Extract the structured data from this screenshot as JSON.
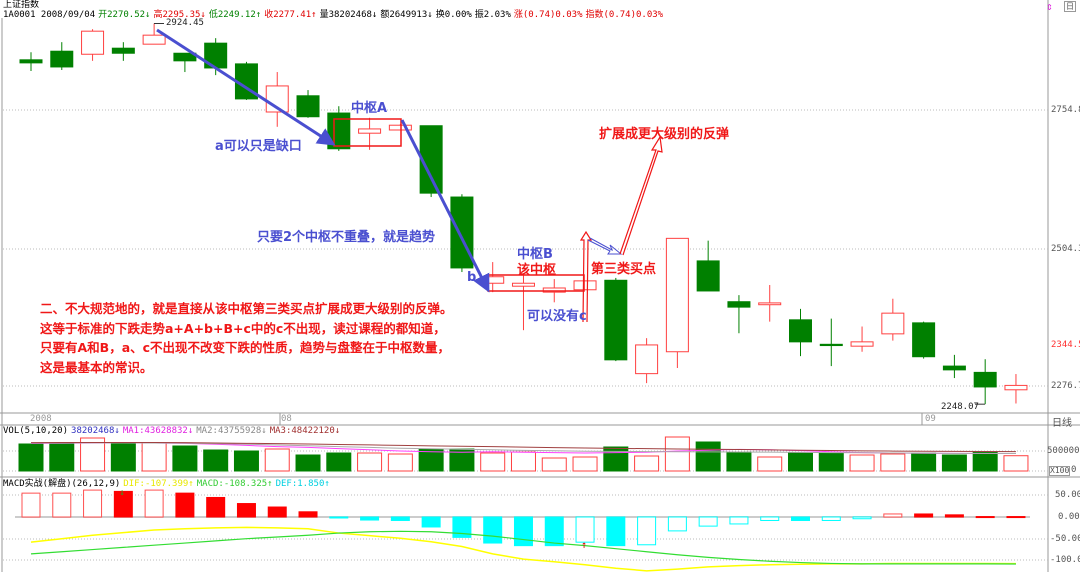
{
  "header": {
    "title": "上证指数",
    "fields": [
      {
        "text": "1A0001 2008/09/04",
        "color": "#000000"
      },
      {
        "text": "开2270.52↓",
        "color": "#008000"
      },
      {
        "text": "高2295.35↓",
        "color": "#e00000"
      },
      {
        "text": "低2249.12↑",
        "color": "#008000"
      },
      {
        "text": "收2277.41↑",
        "color": "#e00000"
      },
      {
        "text": "量38202468↓",
        "color": "#000000"
      },
      {
        "text": "额2649913↓",
        "color": "#000000"
      },
      {
        "text": "换0.00%",
        "color": "#000000"
      },
      {
        "text": "振2.03%",
        "color": "#000000"
      },
      {
        "text": "涨(0.74)0.03%",
        "color": "#e00000"
      },
      {
        "text": "指数(0.74)0.03%",
        "color": "#e00000"
      }
    ],
    "period_label": "日"
  },
  "price_axis": {
    "labels": [
      "2754.8",
      "2504.3",
      "2344.5",
      "2276.7"
    ],
    "highlight_label": "2344.5",
    "high_marker": "2924.45",
    "low_marker": "2248.07",
    "scale": "log"
  },
  "date_axis": {
    "labels": [
      "2008",
      "08",
      "09"
    ],
    "period": "日线"
  },
  "volume": {
    "title": "VOL(5,10,20)",
    "current": "38202468↓",
    "ma1": "MA1:43628832↓",
    "ma2": "MA2:43755928↓",
    "ma3": "MA3:48422120↓",
    "axis_labels": [
      "500000",
      "X100",
      "0"
    ]
  },
  "macd": {
    "title": "MACD实战(解盘)(26,12,9)",
    "dif": "DIF:-107.399↑",
    "dea": "MACD:-108.325↑",
    "def": "DEF:1.850↑",
    "axis_labels": [
      "50.00",
      "0.00",
      "-50.00",
      "-100.0"
    ]
  },
  "annotations": {
    "zhongshu_a": "中枢A",
    "a_gap": "a可以只是缺口",
    "trend_rule": "只要2个中枢不重叠，就是趋势",
    "b": "b",
    "zhongshu_b": "中枢B",
    "this_zhongshu": "该中枢",
    "third_buy": "第三类买点",
    "no_c": "可以没有c",
    "expand": "扩展成更大级别的反弹",
    "paragraph": [
      "二、不大规范地的，就是直接从该中枢第三类买点扩展成更大级别的反弹。",
      "这等于标准的下跌走势a+A+b+B+c中的c不出现，读过课程的都知道，",
      "只要有A和B，a、c不出现不改变下跌的性质，趋势与盘整在于中枢数量，",
      "这是最基本的常识。"
    ]
  },
  "colors": {
    "up": "#ff4040",
    "down": "#008000",
    "annotation_blue": "#4a4fd0",
    "annotation_red": "#f01818",
    "dif": "#ffff00",
    "dea": "#33dd33",
    "macd_neg": "#00ffff"
  },
  "chart_data": {
    "type": "candlestick",
    "candles": [
      [
        2852,
        2867,
        2830,
        2846
      ],
      [
        2869,
        2887,
        2832,
        2838
      ],
      [
        2863,
        2913,
        2850,
        2909
      ],
      [
        2875,
        2887,
        2850,
        2865
      ],
      [
        2883,
        2924.45,
        2883,
        2901
      ],
      [
        2865,
        2865,
        2828,
        2850
      ],
      [
        2885,
        2895,
        2822,
        2836
      ],
      [
        2844,
        2848,
        2774,
        2776
      ],
      [
        2751,
        2828,
        2723,
        2801
      ],
      [
        2782,
        2793,
        2740,
        2742
      ],
      [
        2749,
        2762,
        2678,
        2682
      ],
      [
        2711,
        2740,
        2680,
        2719
      ],
      [
        2717,
        2728,
        2717,
        2726
      ],
      [
        2725,
        2725,
        2594,
        2601
      ],
      [
        2594,
        2599,
        2463,
        2470
      ],
      [
        2444,
        2480,
        2429,
        2455
      ],
      [
        2439,
        2457,
        2366,
        2444
      ],
      [
        2429,
        2451,
        2412,
        2436
      ],
      [
        2433,
        2448,
        2433,
        2448
      ],
      [
        2449,
        2453,
        2316,
        2318
      ],
      [
        2296,
        2353,
        2281,
        2342
      ],
      [
        2331,
        2521,
        2305,
        2521
      ],
      [
        2482,
        2517,
        2431,
        2431
      ],
      [
        2413,
        2424,
        2361,
        2404
      ],
      [
        2408,
        2441,
        2380,
        2411
      ],
      [
        2383,
        2401,
        2324,
        2347
      ],
      [
        2343,
        2385,
        2308,
        2341
      ],
      [
        2340,
        2372,
        2331,
        2347
      ],
      [
        2360,
        2418,
        2349,
        2394
      ],
      [
        2378,
        2380,
        2320,
        2323
      ],
      [
        2308,
        2326,
        2289,
        2302
      ],
      [
        2298,
        2319,
        2248.07,
        2275
      ],
      [
        2270.52,
        2295.35,
        2249.12,
        2277.41
      ]
    ],
    "volume_x100": [
      675000,
      700000,
      825000,
      700000,
      700000,
      625000,
      525000,
      500000,
      550000,
      400000,
      450000,
      450000,
      425000,
      550000,
      550000,
      450000,
      475000,
      325000,
      350000,
      600000,
      375000,
      850000,
      725000,
      475000,
      350000,
      450000,
      450000,
      400000,
      425000,
      450000,
      400000,
      475000,
      382025
    ],
    "volume_ma": {
      "ma1": [
        690000,
        695000,
        700000,
        705000,
        700000,
        690000,
        670000,
        640000,
        610000,
        590000,
        560000,
        530000,
        500000,
        480000,
        470000,
        480000,
        470000,
        460000,
        450000,
        460000,
        470000,
        500000,
        520000,
        540000,
        530000,
        510000,
        480000,
        460000,
        450000,
        445000,
        440000,
        438000,
        436288
      ],
      "ma2": [
        700000,
        700000,
        702000,
        703000,
        700000,
        695000,
        685000,
        670000,
        650000,
        630000,
        610000,
        590000,
        570000,
        555000,
        545000,
        530000,
        515000,
        505000,
        495000,
        490000,
        485000,
        480000,
        478000,
        476000,
        472000,
        466000,
        460000,
        455000,
        450000,
        446000,
        442000,
        440000,
        437559
      ],
      "ma3": [
        710000,
        712000,
        714000,
        714000,
        712000,
        708000,
        700000,
        692000,
        684000,
        675000,
        664000,
        652000,
        640000,
        628000,
        618000,
        608000,
        596000,
        585000,
        575000,
        566000,
        558000,
        550000,
        543000,
        536000,
        528000,
        520000,
        512000,
        504000,
        498000,
        494000,
        490000,
        487000,
        484221
      ]
    },
    "macd_hist": [
      55,
      55,
      62,
      59,
      62,
      55,
      45,
      31,
      23,
      12,
      -1,
      -7,
      -8,
      -23,
      -47,
      -60,
      -66,
      -66,
      -58,
      -66,
      -64,
      -32,
      -21,
      -16,
      -8,
      -8,
      -8,
      -4,
      7,
      7,
      5,
      1,
      1
    ],
    "macd_hist_hollow": [
      true,
      true,
      true,
      false,
      true,
      false,
      false,
      false,
      false,
      false,
      false,
      false,
      false,
      false,
      false,
      false,
      false,
      false,
      true,
      false,
      true,
      true,
      true,
      true,
      true,
      false,
      true,
      true,
      true,
      false,
      false,
      false,
      false
    ],
    "dif": [
      -58,
      -50,
      -42,
      -36,
      -30,
      -27,
      -25,
      -24,
      -25,
      -27,
      -37,
      -43,
      -49,
      -57,
      -68,
      -85,
      -97,
      -103,
      -110,
      -118,
      -124,
      -120,
      -115,
      -112,
      -110,
      -109,
      -108,
      -108,
      -107,
      -107,
      -107,
      -107,
      -107.399
    ],
    "dea": [
      -85,
      -80,
      -75,
      -70,
      -65,
      -60,
      -55,
      -50,
      -46,
      -42,
      -37,
      -34,
      -33,
      -34,
      -38,
      -44,
      -52,
      -60,
      -66,
      -73,
      -80,
      -87,
      -93,
      -98,
      -102,
      -105,
      -107,
      -108,
      -108,
      -108,
      -108,
      -108,
      -108.325
    ]
  }
}
